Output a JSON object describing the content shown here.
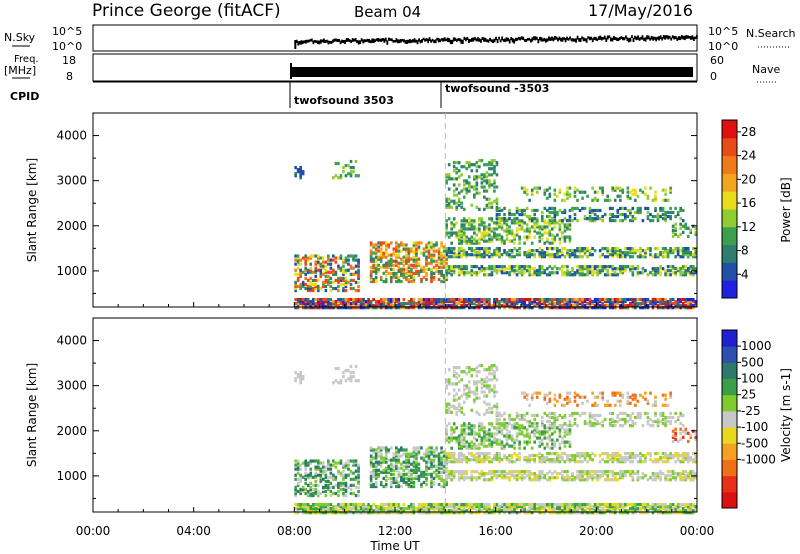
{
  "header": {
    "station": "Prince George (fitACF)",
    "beam": "Beam 04",
    "date": "17/May/2016"
  },
  "labels": {
    "nsky_l1": "N.Sky",
    "freq_l1": "Freq.",
    "freq_l2": "[MHz]",
    "cpid": "CPID",
    "nsearch": "N.Search",
    "nave": "Nave",
    "cp1": "twofsound 3503",
    "cp2": "twofsound -3503",
    "nsky_t1": "10^5",
    "nsky_t2": "10^0",
    "nsky_r1": "10^5",
    "nsky_r2": "10^0",
    "freq_t1": "18",
    "freq_t2": "8",
    "nave_t1": "60",
    "nave_t2": "0"
  },
  "colors": {
    "power": [
      "#2020e0",
      "#1f4fa8",
      "#2e7d6e",
      "#3aa050",
      "#8fcc2f",
      "#e8dd1c",
      "#f3a520",
      "#f07a18",
      "#e84a18",
      "#e01010"
    ],
    "velocity": [
      "#2020d0",
      "#2f4fb0",
      "#2e7a6a",
      "#3aa048",
      "#7fcc30",
      "#c8c8c8",
      "#e8d81e",
      "#f5a020",
      "#f07018",
      "#e83018",
      "#dd1010"
    ]
  },
  "chart_data": [
    {
      "type": "heatmap",
      "title": "",
      "xlabel": "",
      "ylabel": "Slant Range [km]",
      "x_ticks": [
        "00:00",
        "04:00",
        "08:00",
        "12:00",
        "16:00",
        "20:00",
        "00:00"
      ],
      "x_range_hours": [
        0,
        24
      ],
      "y_ticks": [
        1000,
        2000,
        3000,
        4000
      ],
      "ylim": [
        200,
        4500
      ],
      "colorbar": {
        "label": "Power [dB]",
        "ticks": [
          4,
          8,
          12,
          16,
          20,
          24,
          28
        ],
        "range": [
          0,
          30
        ]
      },
      "data_start_hour": 8,
      "mode_change_hour": 14
    },
    {
      "type": "heatmap",
      "title": "",
      "xlabel": "Time UT",
      "ylabel": "Slant Range [km]",
      "x_ticks": [
        "00:00",
        "04:00",
        "08:00",
        "12:00",
        "16:00",
        "20:00",
        "00:00"
      ],
      "x_range_hours": [
        0,
        24
      ],
      "y_ticks": [
        1000,
        2000,
        3000,
        4000
      ],
      "ylim": [
        200,
        4500
      ],
      "colorbar": {
        "label": "Velocity [m s-1]",
        "ticks": [
          "1000",
          "500",
          "100",
          "25",
          "-25",
          "-100",
          "-500",
          "-1000"
        ]
      },
      "data_start_hour": 8,
      "mode_change_hour": 14
    }
  ]
}
